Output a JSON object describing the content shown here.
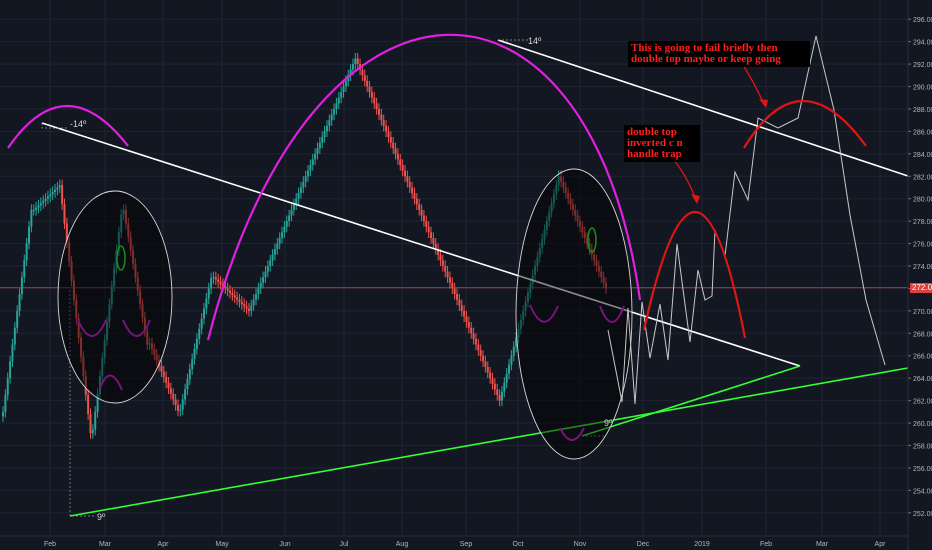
{
  "chart_data": {
    "type": "candlestick",
    "ylim": [
      251,
      297
    ],
    "y_ticks": [
      "252.00",
      "254.00",
      "256.00",
      "258.00",
      "260.00",
      "262.00",
      "264.00",
      "266.00",
      "268.00",
      "270.00",
      "272.00",
      "274.00",
      "276.00",
      "278.00",
      "280.00",
      "282.00",
      "284.00",
      "286.00",
      "288.00",
      "290.00",
      "292.00",
      "294.00",
      "296.00"
    ],
    "x_ticks": [
      "Feb",
      "Mar",
      "Apr",
      "May",
      "Jun",
      "Jul",
      "Aug",
      "Sep",
      "Oct",
      "Nov",
      "Dec",
      "2019",
      "Feb",
      "Mar",
      "Apr"
    ],
    "current_price_label": "272.06",
    "current_price": 272.06,
    "colors": {
      "background": "#131722",
      "grid": "#1f2433",
      "bull": "#26a69a",
      "bear": "#ef5350",
      "white_line": "#ffffff",
      "green_line": "#33ff33",
      "magenta": "#e020e0",
      "red_arc": "#e01515",
      "projection": "#c8c8c8",
      "price_line": "#d04646"
    },
    "annotations": {
      "angle_a": "-14º",
      "angle_b": "14º",
      "angle_c": "9º",
      "angle_d": "9º",
      "note_top": "This is going to fail briefly then double top maybe or keep going",
      "note_mid": "double top inverted c n handle trap"
    },
    "closes": [
      261,
      262.5,
      264,
      265.5,
      267,
      268.5,
      270,
      271.5,
      273,
      274.5,
      276,
      277.5,
      279,
      279,
      279.2,
      279.4,
      279.6,
      279.8,
      280,
      280.2,
      280.4,
      280.6,
      280.8,
      281,
      281.2,
      279.5,
      277.8,
      276.1,
      274.4,
      272.7,
      271,
      269.3,
      267.6,
      265.9,
      264.2,
      262.5,
      260.8,
      259.1,
      259.4,
      261,
      262.6,
      264.2,
      265.8,
      267.4,
      269,
      270.6,
      272.2,
      273.8,
      275.4,
      277,
      278.6,
      279,
      277.8,
      276.6,
      275.4,
      274.2,
      273,
      271.8,
      270.6,
      269.4,
      268.2,
      267,
      267.1,
      266.6,
      266.1,
      265.6,
      265.1,
      264.6,
      264.1,
      263.6,
      263.1,
      262.6,
      262.1,
      261.6,
      261.1,
      261.2,
      262.1,
      263,
      263.9,
      264.8,
      265.7,
      266.6,
      267.5,
      268.4,
      269.3,
      270.2,
      271.1,
      272,
      272.9,
      273,
      272.8,
      272.6,
      272.4,
      272.2,
      272,
      271.8,
      271.6,
      271.4,
      271.2,
      271,
      270.8,
      270.6,
      270.4,
      270.2,
      270,
      270.5,
      271,
      271.5,
      272,
      272.5,
      273,
      273.5,
      274,
      274.5,
      275,
      275.5,
      276,
      276.5,
      277,
      277.5,
      278,
      278.5,
      279,
      279.5,
      280,
      280.5,
      281,
      281.5,
      282,
      282.5,
      283,
      283.5,
      284,
      284.5,
      285,
      285.5,
      286,
      286.5,
      287,
      287.5,
      288,
      288.5,
      289,
      289.5,
      290,
      290.5,
      291,
      291.5,
      292,
      292.5,
      292,
      291.5,
      291,
      290.5,
      290,
      289.5,
      289,
      288.5,
      288,
      287.5,
      287,
      286.5,
      286,
      285.5,
      285,
      284.5,
      284,
      283.5,
      283,
      282.5,
      282,
      281.5,
      281,
      280.5,
      280,
      279.5,
      279,
      278.5,
      278,
      277.5,
      277,
      276.5,
      276,
      275.5,
      275,
      274.5,
      274,
      273.5,
      273,
      272.5,
      272,
      271.5,
      271,
      270.5,
      270,
      269.5,
      269,
      268.5,
      268,
      267.5,
      267,
      266.5,
      266,
      265.5,
      265,
      264.5,
      264,
      263.5,
      263,
      262.5,
      262,
      262.8,
      263.6,
      264.4,
      265.2,
      266,
      266.8,
      267.6,
      268.4,
      269.2,
      270,
      270.8,
      271.6,
      272.4,
      273.2,
      274,
      274.8,
      275.6,
      276.4,
      277.2,
      278,
      278.8,
      279.6,
      280.4,
      281.2,
      282,
      281.5,
      281,
      280.5,
      280,
      279.5,
      279,
      278.5,
      278,
      277.5,
      277,
      276.5,
      276,
      275.5,
      275,
      274.5,
      274,
      273.5,
      273,
      272.5,
      272
    ],
    "projection": [
      [
        608,
        330
      ],
      [
        622,
        402
      ],
      [
        628,
        308
      ],
      [
        635,
        404
      ],
      [
        642,
        302
      ],
      [
        650,
        358
      ],
      [
        660,
        304
      ],
      [
        668,
        360
      ],
      [
        677,
        244
      ],
      [
        690,
        342
      ],
      [
        698,
        270
      ],
      [
        705,
        300
      ],
      [
        712,
        296
      ],
      [
        715,
        230
      ],
      [
        725,
        256
      ],
      [
        735,
        172
      ],
      [
        748,
        200
      ],
      [
        758,
        118
      ],
      [
        778,
        128
      ],
      [
        798,
        118
      ],
      [
        816,
        36
      ],
      [
        834,
        110
      ],
      [
        850,
        215
      ],
      [
        866,
        300
      ],
      [
        885,
        365
      ]
    ]
  }
}
